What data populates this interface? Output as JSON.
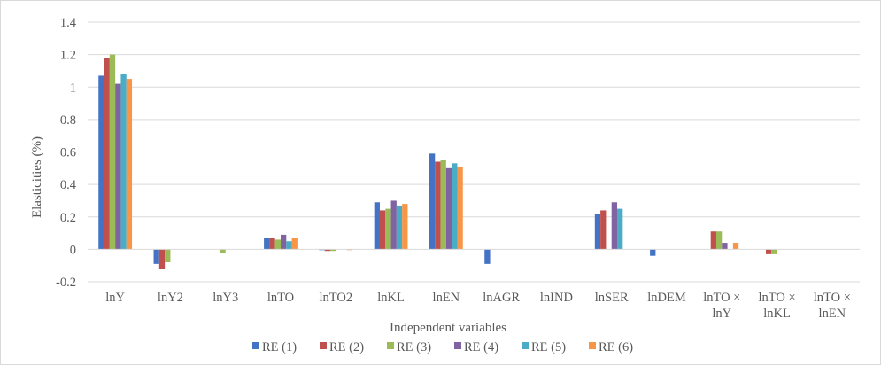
{
  "chart_data": {
    "type": "bar",
    "xlabel": "Independent variables",
    "ylabel": "Elasticities (%)",
    "ylim": [
      -0.2,
      1.4
    ],
    "yticks": [
      "-0.2",
      "0",
      "0.2",
      "0.4",
      "0.6",
      "0.8",
      "1",
      "1.2",
      "1.4"
    ],
    "grid": true,
    "legend_position": "bottom",
    "categories": [
      [
        "lnY"
      ],
      [
        "lnY2"
      ],
      [
        "lnY3"
      ],
      [
        "lnTO"
      ],
      [
        "lnTO2"
      ],
      [
        "lnKL"
      ],
      [
        "lnEN"
      ],
      [
        "lnAGR"
      ],
      [
        "lnIND"
      ],
      [
        "lnSER"
      ],
      [
        "lnDEM"
      ],
      [
        "lnTO ×",
        "lnY"
      ],
      [
        "lnTO ×",
        "lnKL"
      ],
      [
        "lnTO ×",
        "lnEN"
      ]
    ],
    "series": [
      {
        "name": "RE (1)",
        "color": "#4472c4",
        "values": [
          1.07,
          -0.09,
          null,
          0.07,
          -0.005,
          0.29,
          0.59,
          -0.09,
          null,
          0.22,
          -0.04,
          null,
          null,
          null
        ]
      },
      {
        "name": "RE (2)",
        "color": "#c0504d",
        "values": [
          1.18,
          -0.12,
          null,
          0.07,
          -0.01,
          0.24,
          0.54,
          null,
          null,
          0.24,
          null,
          0.11,
          -0.03,
          null
        ]
      },
      {
        "name": "RE (3)",
        "color": "#9bbb59",
        "values": [
          1.2,
          -0.08,
          -0.02,
          0.06,
          -0.01,
          0.25,
          0.55,
          null,
          null,
          null,
          null,
          0.11,
          -0.03,
          null
        ]
      },
      {
        "name": "RE (4)",
        "color": "#8064a2",
        "values": [
          1.02,
          null,
          null,
          0.09,
          null,
          0.3,
          0.5,
          null,
          null,
          0.29,
          null,
          0.04,
          null,
          null
        ]
      },
      {
        "name": "RE (5)",
        "color": "#4bacc6",
        "values": [
          1.08,
          null,
          null,
          0.05,
          null,
          0.27,
          0.53,
          null,
          null,
          0.25,
          null,
          null,
          null,
          null
        ]
      },
      {
        "name": "RE (6)",
        "color": "#f79646",
        "values": [
          1.05,
          null,
          null,
          0.07,
          -0.005,
          0.28,
          0.51,
          null,
          null,
          null,
          null,
          0.04,
          null,
          null
        ]
      }
    ]
  }
}
